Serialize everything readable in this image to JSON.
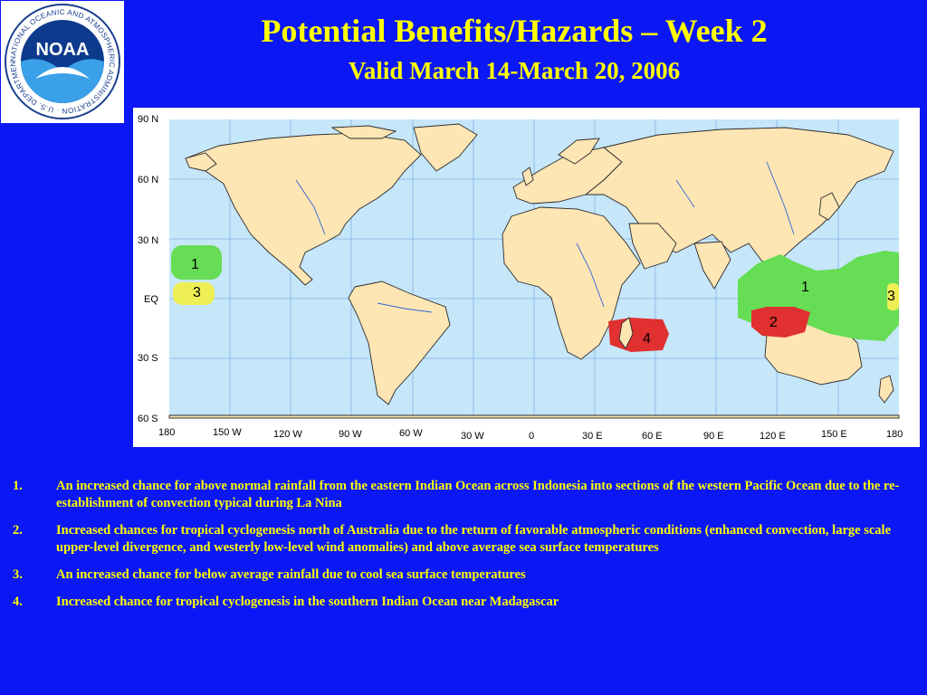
{
  "header": {
    "title": "Potential Benefits/Hazards – Week 2",
    "subtitle": "Valid March 14-March 20, 2006"
  },
  "logo": {
    "center_text": "NOAA",
    "ring_text": "NATIONAL OCEANIC AND ATMOSPHERIC ADMINISTRATION · U.S. DEPARTMENT OF COMMERCE ·"
  },
  "map": {
    "lat_labels": [
      "90 N",
      "60 N",
      "30 N",
      "EQ",
      "30 S",
      "60 S"
    ],
    "lon_labels": [
      "180",
      "150 W",
      "120 W",
      "90 W",
      "60 W",
      "30 W",
      "0",
      "30 E",
      "60 E",
      "90 E",
      "120 E",
      "150 E",
      "180"
    ],
    "regions": [
      {
        "id": "1",
        "label": "1",
        "category": "above normal rainfall",
        "color": "#66dd55"
      },
      {
        "id": "1b",
        "label": "1",
        "category": "above normal rainfall",
        "color": "#66dd55"
      },
      {
        "id": "2",
        "label": "2",
        "category": "tropical cyclogenesis",
        "color": "#e03030"
      },
      {
        "id": "3",
        "label": "3",
        "category": "below average rainfall",
        "color": "#eeee55"
      },
      {
        "id": "3b",
        "label": "3",
        "category": "below average rainfall",
        "color": "#eeee55"
      },
      {
        "id": "4",
        "label": "4",
        "category": "tropical cyclogenesis",
        "color": "#e03030"
      }
    ],
    "colors": {
      "ocean": "#c6e6fa",
      "land": "#fde5b4",
      "grid": "#7fb5e6",
      "rivers": "#2e63d8"
    }
  },
  "notes": [
    {
      "num": "1.",
      "text": "An increased chance for above normal rainfall from the eastern Indian Ocean across Indonesia into sections of the western Pacific Ocean due to the re-establishment of convection typical during La Nina"
    },
    {
      "num": "2.",
      "text": "Increased chances for tropical cyclogenesis north of Australia due to the return of favorable atmospheric conditions (enhanced convection, large scale upper-level divergence, and westerly low-level wind anomalies) and above average sea surface temperatures"
    },
    {
      "num": "3.",
      "text": "An increased chance for below average rainfall due to cool sea surface temperatures"
    },
    {
      "num": "4.",
      "text": "Increased chance for tropical cyclogenesis in the southern Indian Ocean near Madagascar"
    }
  ]
}
